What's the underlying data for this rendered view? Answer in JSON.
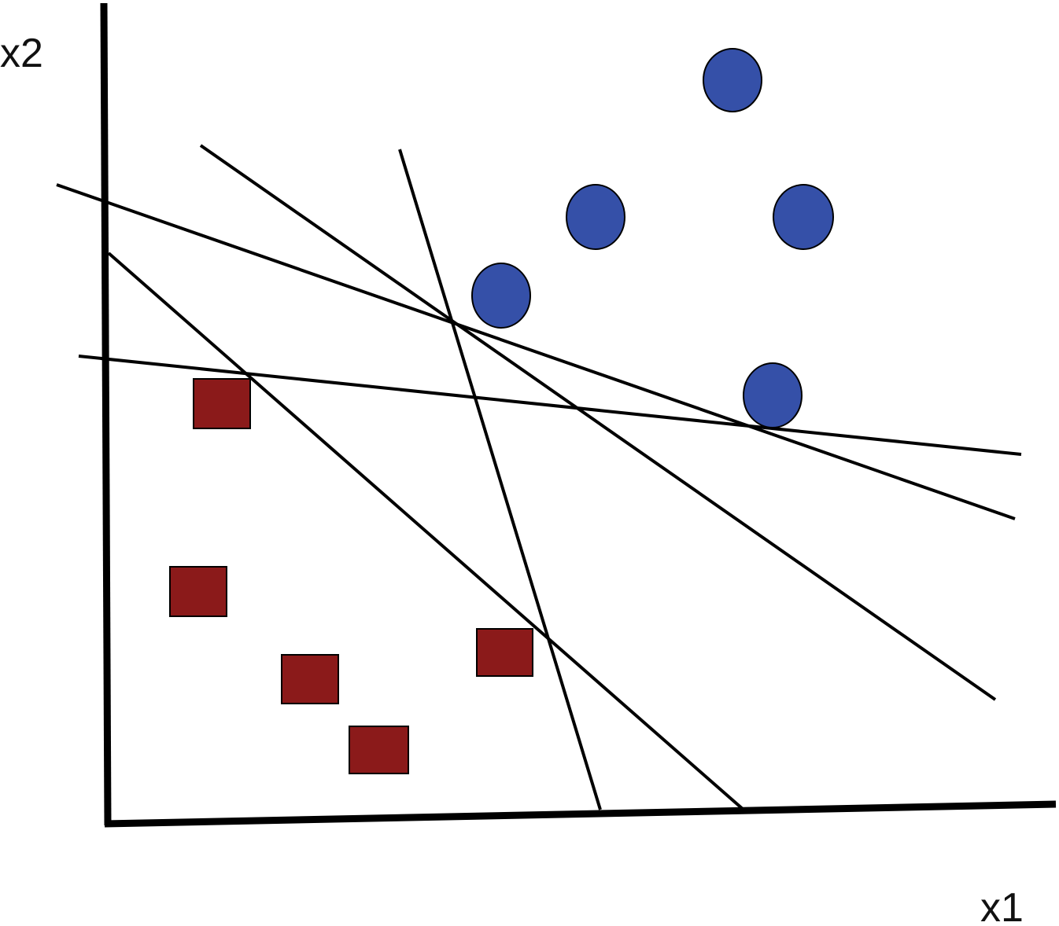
{
  "axes": {
    "x_label": "x1",
    "y_label": "x2"
  },
  "colors": {
    "circle_class": "#3550a8",
    "square_class": "#8b1a1a",
    "outline": "#000000"
  },
  "legend": {
    "circle_class": "circles",
    "square_class": "squares"
  }
}
